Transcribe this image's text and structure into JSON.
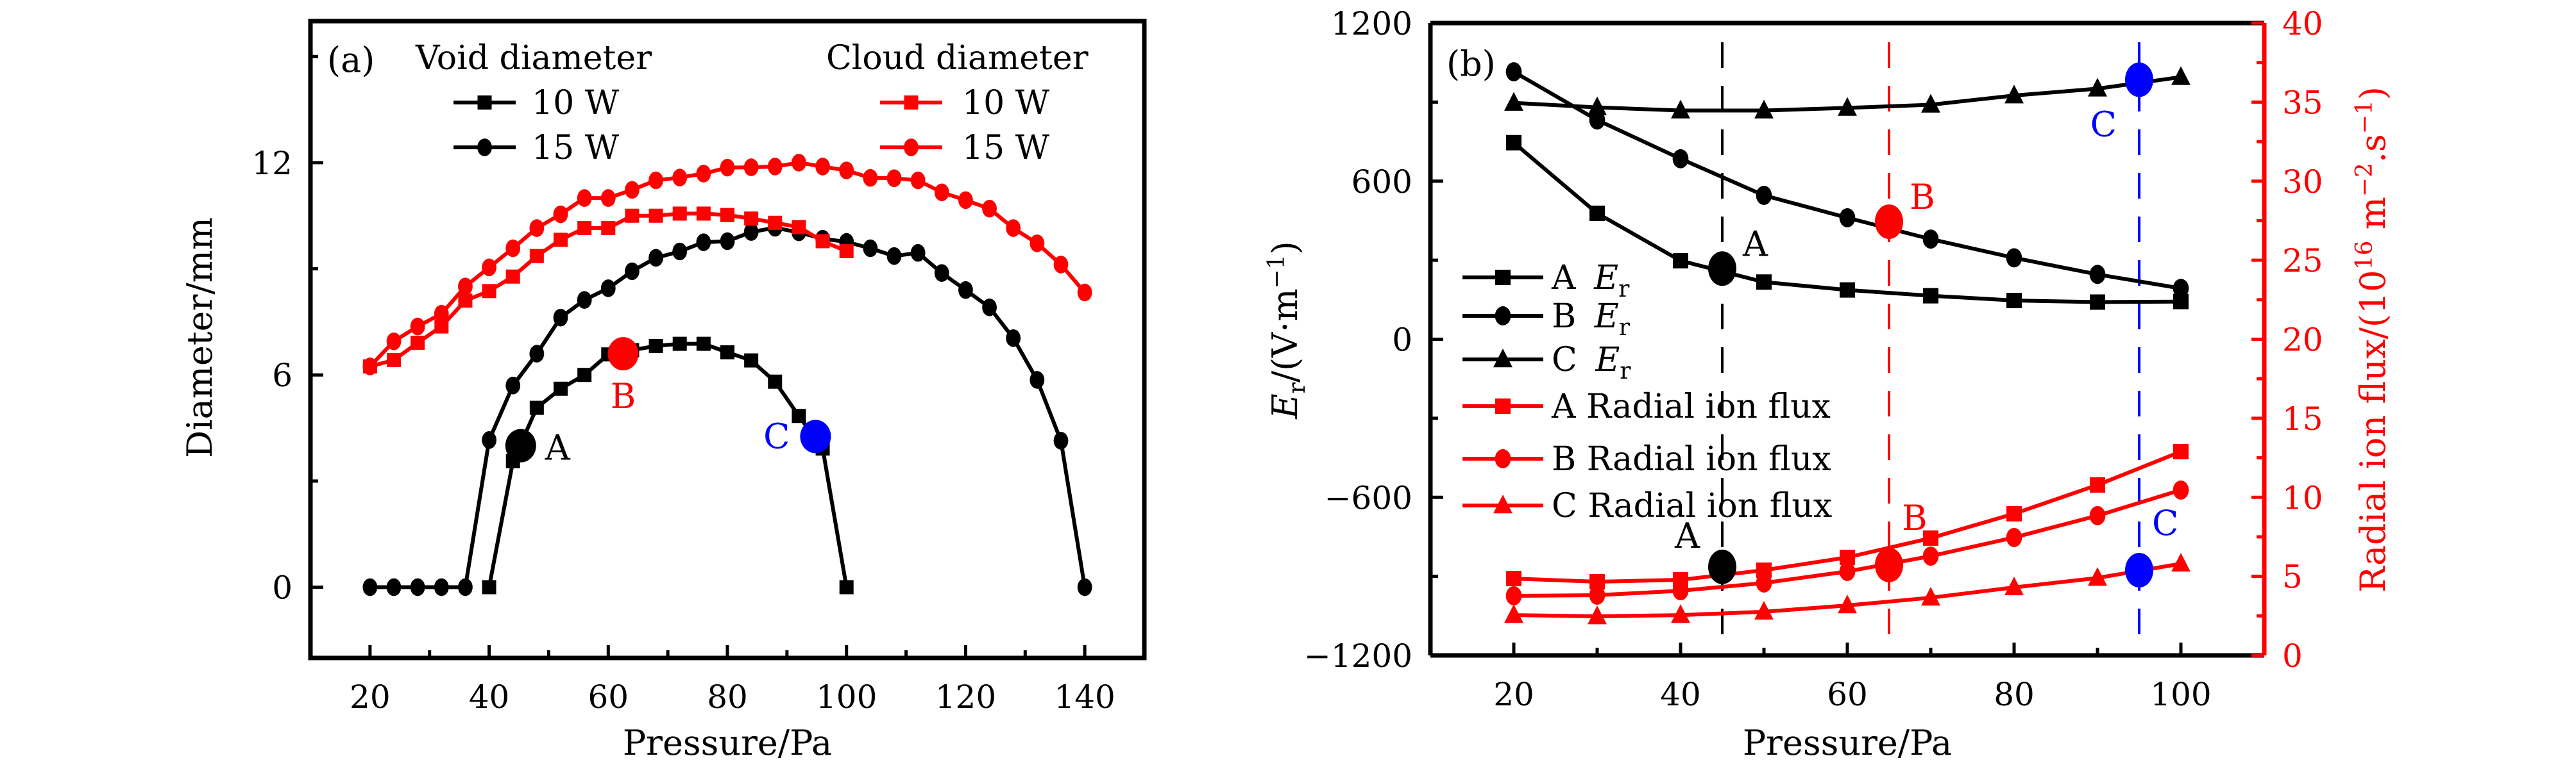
{
  "chart_data": [
    {
      "id": "a",
      "type": "line",
      "panel_label": "(a)",
      "title": "",
      "xlabel": "Pressure/Pa",
      "ylabel": "Diameter/mm",
      "xlim": [
        10,
        150
      ],
      "ylim": [
        -2,
        16
      ],
      "xticks": [
        20,
        40,
        60,
        80,
        100,
        120,
        140
      ],
      "xminor": [
        30,
        50,
        70,
        90,
        110,
        130
      ],
      "yticks": [
        0,
        6,
        12
      ],
      "yminor": [
        3,
        9,
        15
      ],
      "grid": false,
      "legend": {
        "placement": "top",
        "groups": [
          {
            "title": "Void diameter",
            "entries": [
              "void_10",
              "void_15"
            ]
          },
          {
            "title": "Cloud diameter",
            "entries": [
              "cloud_10",
              "cloud_15"
            ]
          }
        ]
      },
      "series": [
        {
          "key": "void_10",
          "name": "10 W",
          "group": "Void diameter",
          "color": "#000000",
          "marker": "square",
          "x": [
            40,
            44,
            48,
            52,
            56,
            60,
            64,
            68,
            72,
            76,
            80,
            84,
            88,
            92,
            96,
            100
          ],
          "y": [
            0,
            3.56,
            5.07,
            5.61,
            6.0,
            6.58,
            6.7,
            6.82,
            6.88,
            6.88,
            6.64,
            6.41,
            5.81,
            4.84,
            3.92,
            0
          ]
        },
        {
          "key": "void_15",
          "name": "15 W",
          "group": "Void diameter",
          "color": "#000000",
          "marker": "circle",
          "x": [
            20,
            24,
            28,
            32,
            36,
            40,
            44,
            48,
            52,
            56,
            60,
            64,
            68,
            72,
            76,
            80,
            84,
            88,
            92,
            96,
            100,
            104,
            108,
            112,
            116,
            120,
            124,
            128,
            132,
            136,
            140
          ],
          "y": [
            0,
            0,
            0,
            0,
            0,
            4.16,
            5.7,
            6.6,
            7.62,
            8.12,
            8.45,
            8.93,
            9.31,
            9.49,
            9.75,
            9.78,
            10.04,
            10.16,
            10.03,
            9.85,
            9.76,
            9.58,
            9.36,
            9.45,
            8.88,
            8.4,
            7.91,
            7.04,
            5.86,
            4.14,
            0
          ]
        },
        {
          "key": "cloud_10",
          "name": "10 W",
          "group": "Cloud diameter",
          "color": "#ff0000",
          "marker": "square",
          "x": [
            20,
            24,
            28,
            32,
            36,
            40,
            44,
            48,
            52,
            56,
            60,
            64,
            68,
            72,
            76,
            80,
            84,
            88,
            92,
            96,
            100
          ],
          "y": [
            6.24,
            6.42,
            6.91,
            7.37,
            8.1,
            8.37,
            8.78,
            9.36,
            9.82,
            10.15,
            10.15,
            10.5,
            10.5,
            10.56,
            10.56,
            10.52,
            10.42,
            10.3,
            10.18,
            9.78,
            9.5
          ]
        },
        {
          "key": "cloud_15",
          "name": "15 W",
          "group": "Cloud diameter",
          "color": "#ff0000",
          "marker": "circle",
          "x": [
            20,
            24,
            28,
            32,
            36,
            40,
            44,
            48,
            52,
            56,
            60,
            64,
            68,
            72,
            76,
            80,
            84,
            88,
            92,
            96,
            100,
            104,
            108,
            112,
            116,
            120,
            124,
            128,
            132,
            136,
            140
          ],
          "y": [
            6.24,
            6.95,
            7.37,
            7.73,
            8.5,
            9.04,
            9.58,
            10.15,
            10.54,
            11.0,
            11.0,
            11.23,
            11.5,
            11.58,
            11.69,
            11.86,
            11.87,
            11.89,
            12.0,
            11.89,
            11.78,
            11.57,
            11.56,
            11.5,
            11.16,
            10.94,
            10.7,
            10.15,
            9.72,
            9.12,
            8.33
          ]
        }
      ],
      "highlights": [
        {
          "label": "A",
          "x": 45.3,
          "y": 4.0,
          "color": "#000000",
          "label_side": "right"
        },
        {
          "label": "B",
          "x": 62.5,
          "y": 6.6,
          "color": "#ff0000",
          "label_side": "below"
        },
        {
          "label": "C",
          "x": 94.8,
          "y": 4.26,
          "color": "#0000ff",
          "label_side": "left"
        }
      ]
    },
    {
      "id": "b",
      "type": "line",
      "panel_label": "(b)",
      "title": "",
      "xlabel": "Pressure/Pa",
      "ylabel": "E_r/(V·m^-1)",
      "ylabel_parts": {
        "main": "E",
        "sub": "r",
        "unit": "/(V·m",
        "sup": "−1",
        "close": ")"
      },
      "y2label": "Radial ion flux/(10^16 m^-2.s^-1)",
      "y2label_parts": {
        "pre": "Radial ion flux/(10",
        "sup1": "16",
        "mid": " m",
        "sup2": "−2",
        "mid2": ".s",
        "sup3": "−1",
        "close": ")"
      },
      "xlim": [
        10,
        110
      ],
      "ylim": [
        -1200,
        1200
      ],
      "y2lim": [
        0,
        40
      ],
      "xticks": [
        20,
        40,
        60,
        80,
        100
      ],
      "xminor": [
        30,
        50,
        70,
        90
      ],
      "yticks": [
        -1200,
        -600,
        0,
        600,
        1200
      ],
      "yminor": [
        -900,
        -300,
        300,
        900
      ],
      "y2ticks": [
        0,
        5,
        10,
        15,
        20,
        25,
        30,
        35,
        40
      ],
      "y2minor": [
        2.5,
        7.5,
        12.5,
        17.5,
        22.5,
        27.5,
        32.5,
        37.5
      ],
      "grid": false,
      "legend": {
        "placement": "left-middle"
      },
      "vlines": [
        {
          "x": 45,
          "color": "#000000"
        },
        {
          "x": 65,
          "color": "#ff0000"
        },
        {
          "x": 95,
          "color": "#0000ff"
        }
      ],
      "series": [
        {
          "key": "A_Er",
          "name": "A E_r",
          "legend_letter": "A",
          "legend_rest": "E",
          "legend_sub": "r",
          "axis": "left",
          "color": "#000000",
          "marker": "square",
          "x": [
            20,
            30,
            40,
            50,
            60,
            70,
            80,
            90,
            100
          ],
          "y": [
            746,
            478,
            298,
            217,
            187,
            165,
            147,
            141,
            143
          ]
        },
        {
          "key": "B_Er",
          "name": "B E_r",
          "legend_letter": "B",
          "legend_rest": "E",
          "legend_sub": "r",
          "axis": "left",
          "color": "#000000",
          "marker": "circle",
          "x": [
            20,
            30,
            40,
            50,
            60,
            70,
            80,
            90,
            100
          ],
          "y": [
            1015,
            832,
            685,
            546,
            461,
            380,
            309,
            246,
            193
          ]
        },
        {
          "key": "C_Er",
          "name": "C E_r",
          "legend_letter": "C",
          "legend_rest": "E",
          "legend_sub": "r",
          "axis": "left",
          "color": "#000000",
          "marker": "triangle",
          "x": [
            20,
            30,
            40,
            50,
            60,
            70,
            80,
            90,
            100
          ],
          "y": [
            897,
            880,
            868,
            868,
            878,
            890,
            925,
            951,
            995
          ]
        },
        {
          "key": "A_flux",
          "name": "A Radial ion flux",
          "legend_letter": "A",
          "legend_rest": "Radial ion flux",
          "axis": "right",
          "color": "#ff0000",
          "marker": "square",
          "x": [
            20,
            30,
            40,
            50,
            60,
            70,
            80,
            90,
            100
          ],
          "y": [
            4.86,
            4.66,
            4.78,
            5.39,
            6.2,
            7.42,
            8.96,
            10.78,
            12.89
          ]
        },
        {
          "key": "B_flux",
          "name": "B Radial ion flux",
          "legend_letter": "B",
          "legend_rest": "Radial ion flux",
          "axis": "right",
          "color": "#ff0000",
          "marker": "circle",
          "x": [
            20,
            30,
            40,
            50,
            60,
            70,
            80,
            90,
            100
          ],
          "y": [
            3.77,
            3.81,
            4.09,
            4.58,
            5.31,
            6.28,
            7.46,
            8.84,
            10.46
          ]
        },
        {
          "key": "C_flux",
          "name": "C Radial ion flux",
          "legend_letter": "C",
          "legend_rest": "Radial ion flux",
          "axis": "right",
          "color": "#ff0000",
          "marker": "triangle",
          "x": [
            20,
            30,
            40,
            50,
            60,
            70,
            80,
            90,
            100
          ],
          "y": [
            2.55,
            2.47,
            2.55,
            2.76,
            3.16,
            3.65,
            4.3,
            4.9,
            5.8
          ]
        }
      ],
      "highlights": [
        {
          "label": "A",
          "x": 45,
          "y": 268,
          "axis": "left",
          "color": "#000000",
          "label_side": "upper-right"
        },
        {
          "label": "B",
          "x": 65,
          "y": 446,
          "axis": "left",
          "color": "#ff0000",
          "label_side": "upper-right"
        },
        {
          "label": "C",
          "x": 95,
          "y": 985,
          "axis": "left",
          "color": "#0000ff",
          "label_side": "lower-left"
        },
        {
          "label": "A",
          "x": 45,
          "y": 5.6,
          "axis": "right",
          "color": "#000000",
          "label_side": "upper-left"
        },
        {
          "label": "B",
          "x": 65,
          "y": 5.72,
          "axis": "right",
          "color": "#ff0000",
          "label_side": "upper-right"
        },
        {
          "label": "C",
          "x": 95,
          "y": 5.39,
          "axis": "right",
          "color": "#0000ff",
          "label_side": "upper-right"
        }
      ]
    }
  ],
  "colors": {
    "black": "#000000",
    "red": "#ff0000",
    "blue": "#0000ff"
  }
}
